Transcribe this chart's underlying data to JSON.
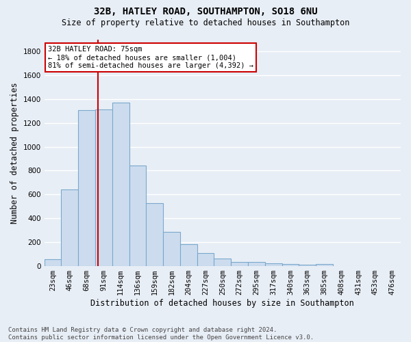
{
  "title": "32B, HATLEY ROAD, SOUTHAMPTON, SO18 6NU",
  "subtitle": "Size of property relative to detached houses in Southampton",
  "xlabel": "Distribution of detached houses by size in Southampton",
  "ylabel": "Number of detached properties",
  "footer_line1": "Contains HM Land Registry data © Crown copyright and database right 2024.",
  "footer_line2": "Contains public sector information licensed under the Open Government Licence v3.0.",
  "categories": [
    "23sqm",
    "46sqm",
    "68sqm",
    "91sqm",
    "114sqm",
    "136sqm",
    "159sqm",
    "182sqm",
    "204sqm",
    "227sqm",
    "250sqm",
    "272sqm",
    "295sqm",
    "317sqm",
    "340sqm",
    "363sqm",
    "385sqm",
    "408sqm",
    "431sqm",
    "453sqm",
    "476sqm"
  ],
  "values": [
    55,
    640,
    1305,
    1310,
    1370,
    845,
    530,
    285,
    185,
    110,
    65,
    37,
    37,
    22,
    20,
    12,
    20,
    0,
    0,
    0,
    0
  ],
  "bar_color": "#ccdcee",
  "bar_edge_color": "#7aa8cc",
  "vline_x": 2.68,
  "vline_color": "#cc0000",
  "annotation_title": "32B HATLEY ROAD: 75sqm",
  "annotation_line1": "← 18% of detached houses are smaller (1,004)",
  "annotation_line2": "81% of semi-detached houses are larger (4,392) →",
  "annotation_box_facecolor": "#ffffff",
  "annotation_box_edgecolor": "#cc0000",
  "ylim": [
    0,
    1900
  ],
  "yticks": [
    0,
    200,
    400,
    600,
    800,
    1000,
    1200,
    1400,
    1600,
    1800
  ],
  "background_color": "#e8eef6",
  "grid_color": "#ffffff",
  "title_fontsize": 10,
  "subtitle_fontsize": 8.5,
  "xlabel_fontsize": 8.5,
  "ylabel_fontsize": 8.5,
  "tick_fontsize": 7.5,
  "footer_fontsize": 6.5,
  "ann_fontsize": 7.5
}
